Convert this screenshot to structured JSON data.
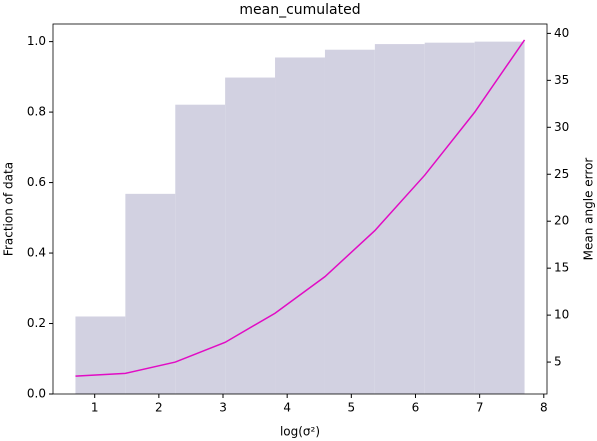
{
  "chart_data": {
    "type": "histogram",
    "title": "mean_cumulated",
    "xlabel": "log(σ²)",
    "ylabel": "Fraction of data",
    "y2label": "Mean angle error",
    "bins": [
      0.7,
      1.478,
      2.256,
      3.033,
      3.811,
      4.589,
      5.367,
      6.144,
      6.922,
      7.7
    ],
    "values": [
      0.22,
      0.568,
      0.821,
      0.898,
      0.955,
      0.977,
      0.993,
      0.997,
      1.0
    ],
    "color": "#d2d1e1",
    "xlim": [
      0.35,
      8.05
    ],
    "xticks": [
      1,
      2,
      3,
      4,
      5,
      6,
      7,
      8
    ],
    "ylim": [
      0,
      1.05
    ],
    "yticks": [
      {
        "value": 0,
        "label": "0.0"
      },
      {
        "value": 0.2,
        "label": "0.2"
      },
      {
        "value": 0.4,
        "label": "0.4"
      },
      {
        "value": 0.6,
        "label": "0.6"
      },
      {
        "value": 0.8,
        "label": "0.8"
      },
      {
        "value": 1,
        "label": "1.0"
      }
    ],
    "y2lim": [
      1.6,
      41.0
    ],
    "y2ticks": [
      5,
      10,
      15,
      20,
      25,
      30,
      35,
      40
    ],
    "series": [
      {
        "type": "line",
        "axis": "y2",
        "color": "#e10cc4",
        "x": [
          0.7,
          1.478,
          2.256,
          3.033,
          3.811,
          4.589,
          5.367,
          6.144,
          6.922,
          7.7
        ],
        "values": [
          3.5,
          3.8,
          5.0,
          7.1,
          10.2,
          14.1,
          19.0,
          24.9,
          31.6,
          39.3
        ]
      }
    ]
  }
}
